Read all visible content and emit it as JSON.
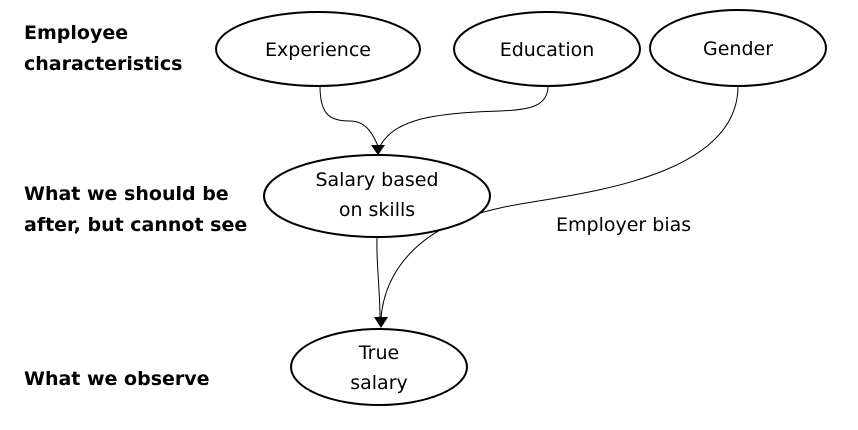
{
  "rows": {
    "characteristics": [
      "Employee",
      "characteristics"
    ],
    "unobserved": [
      "What we should be",
      "after, but cannot see"
    ],
    "observed": [
      "What we observe"
    ]
  },
  "nodes": {
    "experience": [
      "Experience"
    ],
    "education": [
      "Education"
    ],
    "gender": [
      "Gender"
    ],
    "skill_salary": [
      "Salary based",
      "on skills"
    ],
    "true_salary": [
      "True",
      "salary"
    ]
  },
  "edges": [
    {
      "from": "experience",
      "to": "skill_salary",
      "label": ""
    },
    {
      "from": "education",
      "to": "skill_salary",
      "label": ""
    },
    {
      "from": "skill_salary",
      "to": "true_salary",
      "label": ""
    },
    {
      "from": "gender",
      "to": "true_salary",
      "label": "Employer bias"
    }
  ]
}
